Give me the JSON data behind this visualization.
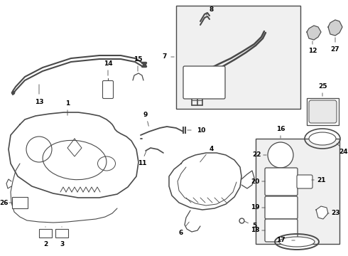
{
  "bg_color": "#ffffff",
  "line_color": "#4a4a4a",
  "label_color": "#000000",
  "fig_w": 4.9,
  "fig_h": 3.6,
  "dpi": 100
}
